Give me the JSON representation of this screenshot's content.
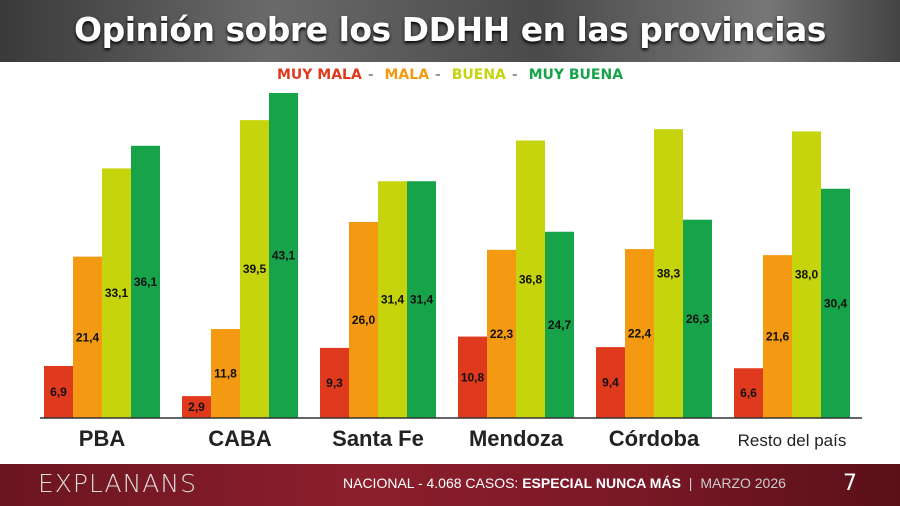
{
  "header": {
    "title": "Opinión sobre los DDHH en las provincias"
  },
  "chart_data": {
    "type": "bar",
    "title": "Opinión sobre los DDHH en las provincias",
    "categories": [
      "PBA",
      "CABA",
      "Santa Fe",
      "Mendoza",
      "Córdoba",
      "Resto del país"
    ],
    "series": [
      {
        "name": "MUY MALA",
        "color": "#e03a1e",
        "values": [
          6.9,
          2.9,
          9.3,
          10.8,
          9.4,
          6.6
        ]
      },
      {
        "name": "MALA",
        "color": "#f39a12",
        "values": [
          21.4,
          11.8,
          26.0,
          22.3,
          22.4,
          21.6
        ]
      },
      {
        "name": "BUENA",
        "color": "#c5d40c",
        "values": [
          33.1,
          39.5,
          31.4,
          36.8,
          38.3,
          38.0
        ]
      },
      {
        "name": "MUY BUENA",
        "color": "#16a34a",
        "values": [
          36.1,
          43.1,
          31.4,
          24.7,
          26.3,
          30.4
        ]
      }
    ],
    "legend_position": "top-center",
    "grid": false,
    "ylim": [
      0,
      43.1
    ],
    "decimal_separator": ","
  },
  "footer": {
    "brand": "EXPLANANS",
    "text": "NACIONAL - 4.068 CASOS: ",
    "bold": "ESPECIAL NUNCA MÁS",
    "sep": "|",
    "date": "MARZO 2026",
    "page": "7"
  }
}
